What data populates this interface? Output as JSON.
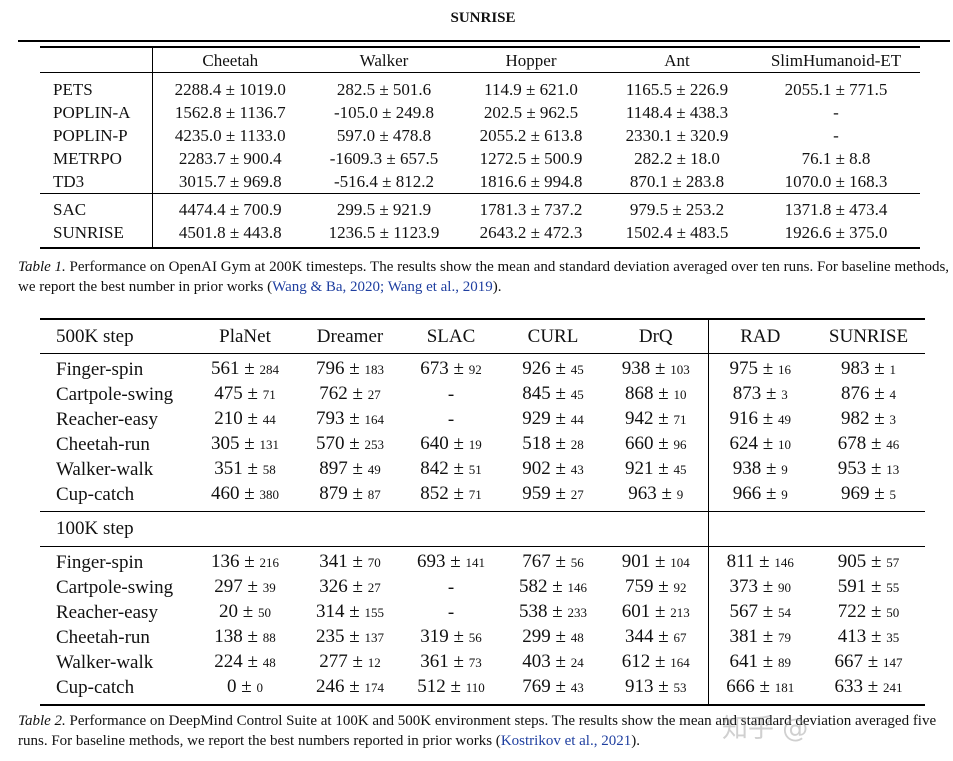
{
  "title": "SUNRISE",
  "table1": {
    "columns": [
      "",
      "Cheetah",
      "Walker",
      "Hopper",
      "Ant",
      "SlimHumanoid-ET"
    ],
    "rows": [
      {
        "method": "PETS",
        "cells": [
          "2288.4 ± 1019.0",
          "282.5 ± 501.6",
          "114.9 ± 621.0",
          "1165.5 ± 226.9",
          "2055.1 ± 771.5"
        ]
      },
      {
        "method": "POPLIN-A",
        "cells": [
          "1562.8 ± 1136.7",
          "-105.0 ± 249.8",
          "202.5 ± 962.5",
          "1148.4 ± 438.3",
          "-"
        ]
      },
      {
        "method": "POPLIN-P",
        "cells": [
          "4235.0 ± 1133.0",
          "597.0 ± 478.8",
          "2055.2 ± 613.8",
          "2330.1 ± 320.9",
          "-"
        ]
      },
      {
        "method": "METRPO",
        "cells": [
          "2283.7 ± 900.4",
          "-1609.3 ± 657.5",
          "1272.5 ± 500.9",
          "282.2 ± 18.0",
          "76.1 ± 8.8"
        ]
      },
      {
        "method": "TD3",
        "cells": [
          "3015.7 ± 969.8",
          "-516.4 ± 812.2",
          "1816.6 ± 994.8",
          "870.1 ± 283.8",
          "1070.0 ± 168.3"
        ]
      },
      {
        "method": "SAC",
        "cells": [
          "4474.4 ± 700.9",
          "299.5 ± 921.9",
          "1781.3 ± 737.2",
          "979.5 ± 253.2",
          "1371.8 ± 473.4"
        ]
      },
      {
        "method": "SUNRISE",
        "cells": [
          "4501.8 ± 443.8",
          "1236.5 ± 1123.9",
          "2643.2 ± 472.3",
          "1502.4 ± 483.5",
          "1926.6 ± 375.0"
        ]
      }
    ],
    "caption": {
      "label": "Table 1.",
      "text": " Performance on OpenAI Gym at 200K timesteps. The results show the mean and standard deviation averaged over ten runs. For baseline methods, we report the best number in prior works (",
      "cite": "Wang & Ba, 2020; Wang et al., 2019",
      "end": ")."
    }
  },
  "table2": {
    "columns": [
      "PlaNet",
      "Dreamer",
      "SLAC",
      "CURL",
      "DrQ",
      "RAD",
      "SUNRISE"
    ],
    "sections": [
      {
        "label": "500K step",
        "rows": [
          {
            "env": "Finger-spin",
            "cells": [
              [
                "561",
                "284"
              ],
              [
                "796",
                "183"
              ],
              [
                "673",
                "92"
              ],
              [
                "926",
                "45"
              ],
              [
                "938",
                "103"
              ],
              [
                "975",
                "16"
              ],
              [
                "983",
                "1"
              ]
            ]
          },
          {
            "env": "Cartpole-swing",
            "cells": [
              [
                "475",
                "71"
              ],
              [
                "762",
                "27"
              ],
              [
                "-",
                ""
              ],
              [
                "845",
                "45"
              ],
              [
                "868",
                "10"
              ],
              [
                "873",
                "3"
              ],
              [
                "876",
                "4"
              ]
            ]
          },
          {
            "env": "Reacher-easy",
            "cells": [
              [
                "210",
                "44"
              ],
              [
                "793",
                "164"
              ],
              [
                "-",
                ""
              ],
              [
                "929",
                "44"
              ],
              [
                "942",
                "71"
              ],
              [
                "916",
                "49"
              ],
              [
                "982",
                "3"
              ]
            ]
          },
          {
            "env": "Cheetah-run",
            "cells": [
              [
                "305",
                "131"
              ],
              [
                "570",
                "253"
              ],
              [
                "640",
                "19"
              ],
              [
                "518",
                "28"
              ],
              [
                "660",
                "96"
              ],
              [
                "624",
                "10"
              ],
              [
                "678",
                "46"
              ]
            ]
          },
          {
            "env": "Walker-walk",
            "cells": [
              [
                "351",
                "58"
              ],
              [
                "897",
                "49"
              ],
              [
                "842",
                "51"
              ],
              [
                "902",
                "43"
              ],
              [
                "921",
                "45"
              ],
              [
                "938",
                "9"
              ],
              [
                "953",
                "13"
              ]
            ]
          },
          {
            "env": "Cup-catch",
            "cells": [
              [
                "460",
                "380"
              ],
              [
                "879",
                "87"
              ],
              [
                "852",
                "71"
              ],
              [
                "959",
                "27"
              ],
              [
                "963",
                "9"
              ],
              [
                "966",
                "9"
              ],
              [
                "969",
                "5"
              ]
            ]
          }
        ]
      },
      {
        "label": "100K step",
        "rows": [
          {
            "env": "Finger-spin",
            "cells": [
              [
                "136",
                "216"
              ],
              [
                "341",
                "70"
              ],
              [
                "693",
                "141"
              ],
              [
                "767",
                "56"
              ],
              [
                "901",
                "104"
              ],
              [
                "811",
                "146"
              ],
              [
                "905",
                "57"
              ]
            ]
          },
          {
            "env": "Cartpole-swing",
            "cells": [
              [
                "297",
                "39"
              ],
              [
                "326",
                "27"
              ],
              [
                "-",
                ""
              ],
              [
                "582",
                "146"
              ],
              [
                "759",
                "92"
              ],
              [
                "373",
                "90"
              ],
              [
                "591",
                "55"
              ]
            ]
          },
          {
            "env": "Reacher-easy",
            "cells": [
              [
                "20",
                "50"
              ],
              [
                "314",
                "155"
              ],
              [
                "-",
                ""
              ],
              [
                "538",
                "233"
              ],
              [
                "601",
                "213"
              ],
              [
                "567",
                "54"
              ],
              [
                "722",
                "50"
              ]
            ]
          },
          {
            "env": "Cheetah-run",
            "cells": [
              [
                "138",
                "88"
              ],
              [
                "235",
                "137"
              ],
              [
                "319",
                "56"
              ],
              [
                "299",
                "48"
              ],
              [
                "344",
                "67"
              ],
              [
                "381",
                "79"
              ],
              [
                "413",
                "35"
              ]
            ]
          },
          {
            "env": "Walker-walk",
            "cells": [
              [
                "224",
                "48"
              ],
              [
                "277",
                "12"
              ],
              [
                "361",
                "73"
              ],
              [
                "403",
                "24"
              ],
              [
                "612",
                "164"
              ],
              [
                "641",
                "89"
              ],
              [
                "667",
                "147"
              ]
            ]
          },
          {
            "env": "Cup-catch",
            "cells": [
              [
                "0",
                "0"
              ],
              [
                "246",
                "174"
              ],
              [
                "512",
                "110"
              ],
              [
                "769",
                "43"
              ],
              [
                "913",
                "53"
              ],
              [
                "666",
                "181"
              ],
              [
                "633",
                "241"
              ]
            ]
          }
        ]
      }
    ],
    "caption": {
      "label": "Table 2.",
      "text": " Performance on DeepMind Control Suite at 100K and 500K environment steps. The results show the mean and standard deviation averaged five runs. For baseline methods, we report the best numbers reported in prior works (",
      "cite": "Kostrikov et al., 2021",
      "end": ")."
    }
  },
  "watermark": "知乎 @山禾一梦",
  "colors": {
    "citation": "#1f3fa0"
  }
}
